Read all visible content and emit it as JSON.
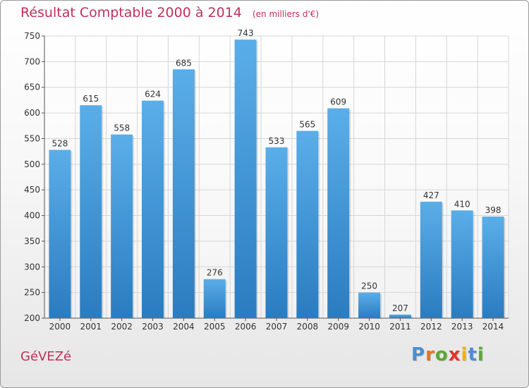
{
  "chart_data": {
    "type": "bar",
    "title": "Résultat Comptable 2000 à 2014",
    "unit_label": "(en milliers d'€)",
    "categories": [
      "2000",
      "2001",
      "2002",
      "2003",
      "2004",
      "2005",
      "2006",
      "2007",
      "2008",
      "2009",
      "2010",
      "2011",
      "2012",
      "2013",
      "2014"
    ],
    "values": [
      528,
      615,
      558,
      624,
      685,
      276,
      743,
      533,
      565,
      609,
      250,
      207,
      427,
      410,
      398
    ],
    "ylim": [
      200,
      750
    ],
    "yticks": [
      200,
      250,
      300,
      350,
      400,
      450,
      500,
      550,
      600,
      650,
      700,
      750
    ],
    "grid": true,
    "xlabel": "",
    "ylabel": "",
    "bar_color_top": "#5aaee8",
    "bar_color_bottom": "#2a7cc0"
  },
  "footer": {
    "commune": "GéVEZé",
    "logo": {
      "letters": [
        "P",
        "r",
        "o",
        "x",
        "i",
        "t",
        "i"
      ],
      "colors": [
        "#4a8fd0",
        "#e8731a",
        "#5aa832",
        "#e0362b",
        "#f0b400",
        "#4a8fd0",
        "#5aa832"
      ]
    }
  },
  "colors": {
    "accent": "#c0305a",
    "grid": "#d6d6d6"
  }
}
